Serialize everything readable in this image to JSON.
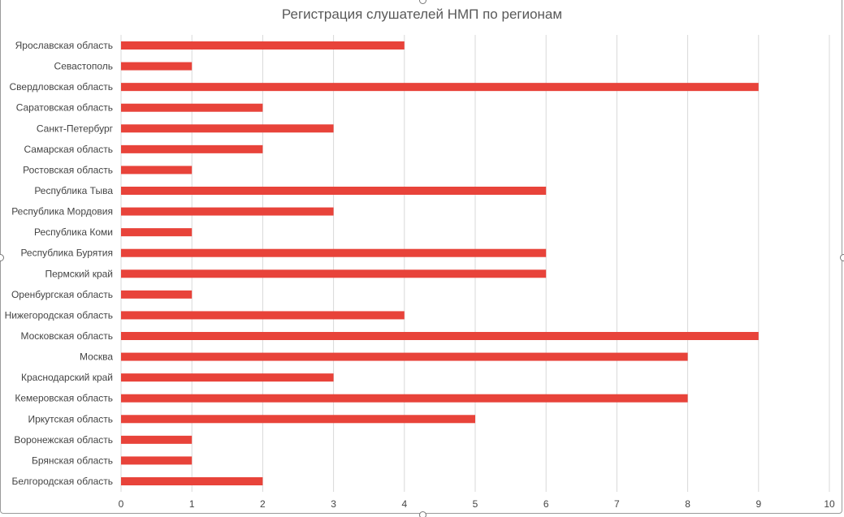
{
  "chart_data": {
    "type": "bar",
    "orientation": "horizontal",
    "title": "Регистрация слушателей НМП по регионам",
    "categories": [
      "Ярославская область",
      "Севастополь",
      "Свердловская область",
      "Саратовская область",
      "Санкт-Петербург",
      "Самарская область",
      "Ростовская область",
      "Республика Тыва",
      "Республика Мордовия",
      "Республика Коми",
      "Республика Бурятия",
      "Пермский край",
      "Оренбургская область",
      "Нижегородская область",
      "Московская область",
      "Москва",
      "Краснодарский край",
      "Кемеровская область",
      "Иркутская область",
      "Воронежская область",
      "Брянская область",
      "Белгородская область"
    ],
    "values": [
      4,
      1,
      9,
      2,
      3,
      2,
      1,
      6,
      3,
      1,
      6,
      6,
      1,
      4,
      9,
      8,
      3,
      8,
      5,
      1,
      1,
      2
    ],
    "xlim": [
      0,
      10
    ],
    "xticks": [
      "0",
      "1",
      "2",
      "3",
      "4",
      "5",
      "6",
      "7",
      "8",
      "9",
      "10"
    ],
    "grid": true,
    "bar_color": "#e8433a",
    "xlabel": "",
    "ylabel": ""
  }
}
